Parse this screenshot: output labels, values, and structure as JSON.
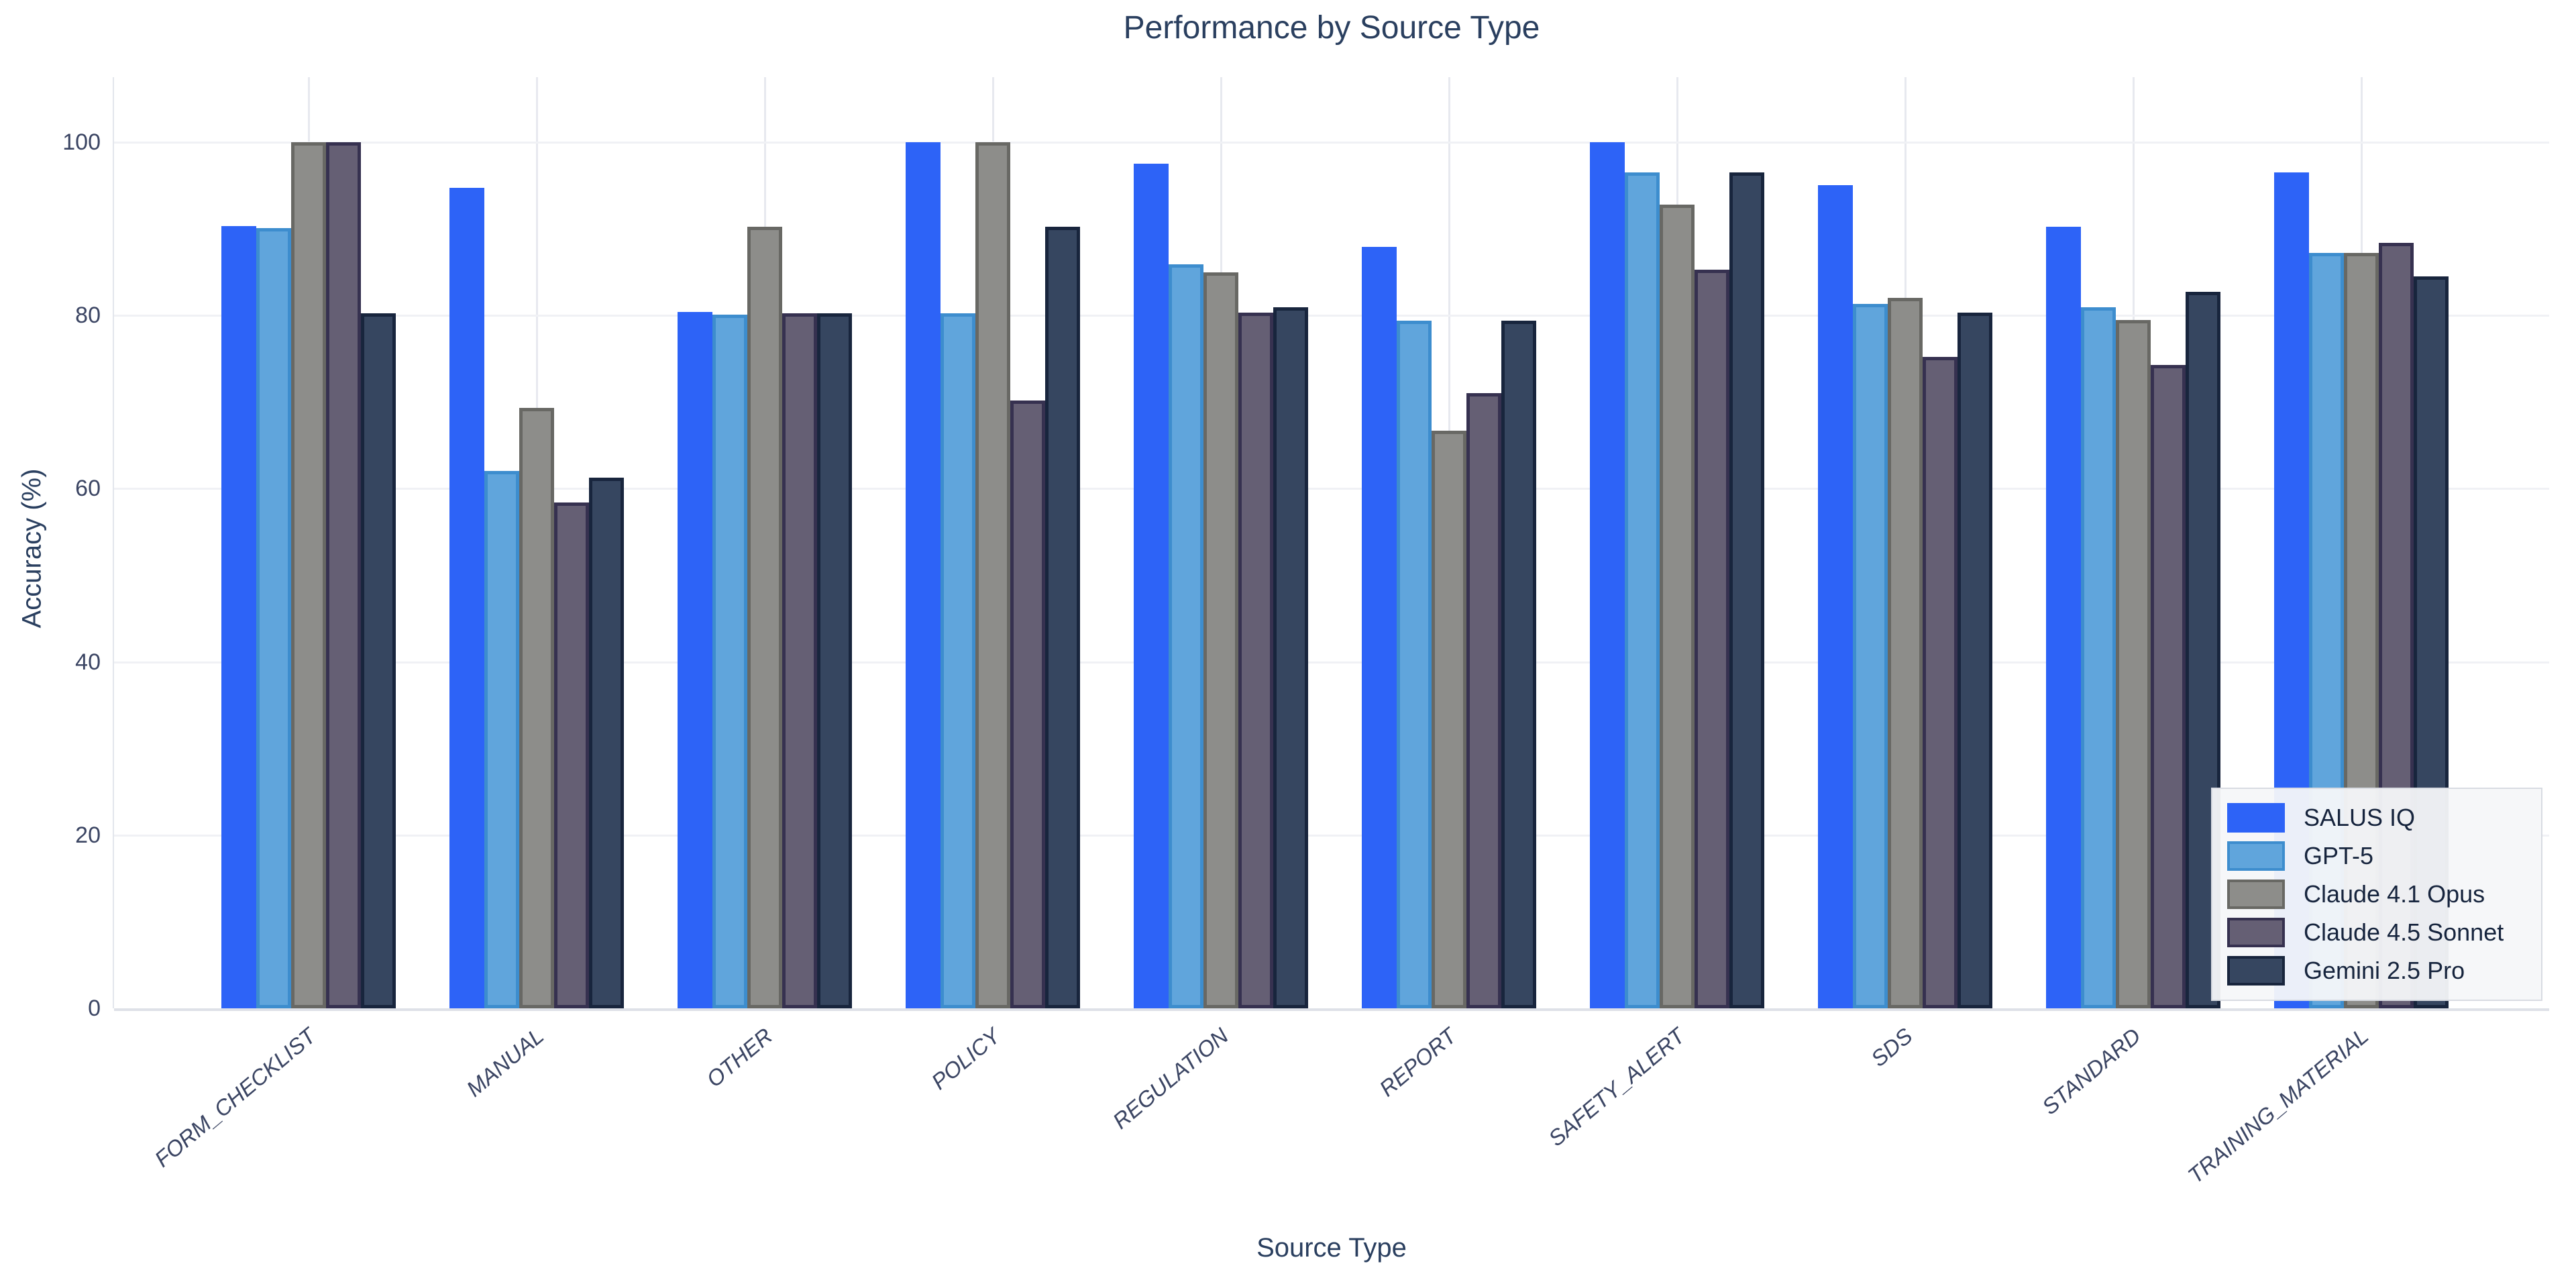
{
  "title": "Performance by Source Type",
  "chart_data": {
    "type": "bar",
    "title": "Performance by Source Type",
    "xlabel": "Source Type",
    "ylabel": "Accuracy (%)",
    "ylim": [
      0,
      107.5
    ],
    "yticks": [
      0,
      20,
      40,
      60,
      80,
      100
    ],
    "grid": true,
    "legend_position": "bottom-right",
    "categories": [
      "FORM_CHECKLIST",
      "MANUAL",
      "OTHER",
      "POLICY",
      "REGULATION",
      "REPORT",
      "SAFETY_ALERT",
      "SDS",
      "STANDARD",
      "TRAINING_MATERIAL"
    ],
    "series": [
      {
        "name": "SALUS IQ",
        "fill": "#2D63F7",
        "stroke": "none",
        "values": [
          90.3,
          94.7,
          80.4,
          100.0,
          97.5,
          87.9,
          100.0,
          95.0,
          90.2,
          96.5
        ]
      },
      {
        "name": "GPT-5",
        "fill": "#60A5DC",
        "stroke": "#3D8DCE",
        "values": [
          90.1,
          62.0,
          80.1,
          80.2,
          85.9,
          79.4,
          96.5,
          81.3,
          80.9,
          87.2
        ]
      },
      {
        "name": "Claude 4.1 Opus",
        "fill": "#8D8D8A",
        "stroke": "#686864",
        "values": [
          100.0,
          69.3,
          90.2,
          100.0,
          85.0,
          66.7,
          92.8,
          82.0,
          79.5,
          87.2
        ]
      },
      {
        "name": "Claude 4.5 Sonnet",
        "fill": "#655F74",
        "stroke": "#363150",
        "values": [
          100.0,
          58.4,
          80.2,
          70.2,
          80.3,
          71.0,
          85.3,
          75.2,
          74.3,
          88.4
        ]
      },
      {
        "name": "Gemini 2.5 Pro",
        "fill": "#364660",
        "stroke": "#18253D",
        "values": [
          80.2,
          61.3,
          80.2,
          90.2,
          80.9,
          79.4,
          96.5,
          80.3,
          82.7,
          84.5
        ]
      }
    ]
  }
}
